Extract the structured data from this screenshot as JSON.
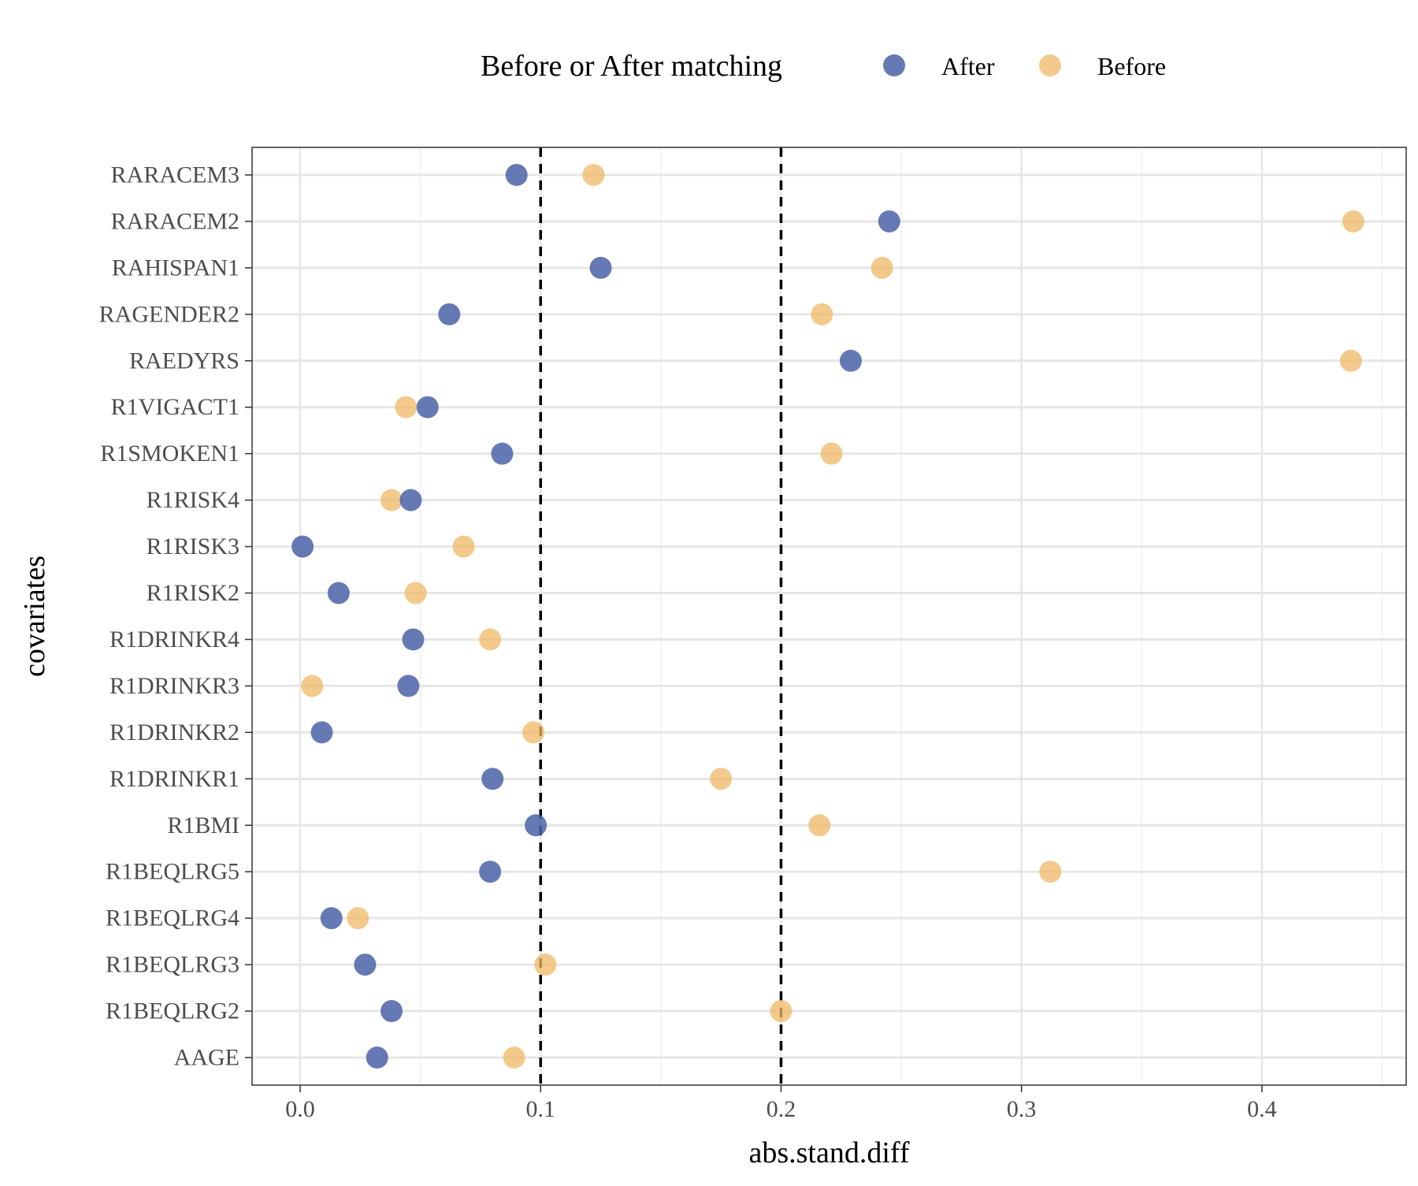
{
  "chart_data": {
    "type": "scatter",
    "xlabel": "abs.stand.diff",
    "ylabel": "covariates",
    "xlim": [
      -0.02,
      0.46
    ],
    "x_ticks": [
      0.0,
      0.1,
      0.2,
      0.3,
      0.4
    ],
    "x_tick_labels": [
      "0.0",
      "0.1",
      "0.2",
      "0.3",
      "0.4"
    ],
    "grid": true,
    "legend": {
      "title": "Before or After matching",
      "position": "top"
    },
    "reference_lines": [
      0.1,
      0.2
    ],
    "categories": [
      "AAGE",
      "R1BEQLRG2",
      "R1BEQLRG3",
      "R1BEQLRG4",
      "R1BEQLRG5",
      "R1BMI",
      "R1DRINKR1",
      "R1DRINKR2",
      "R1DRINKR3",
      "R1DRINKR4",
      "R1RISK2",
      "R1RISK3",
      "R1RISK4",
      "R1SMOKEN1",
      "R1VIGACT1",
      "RAEDYRS",
      "RAGENDER2",
      "RAHISPAN1",
      "RARACEM2",
      "RARACEM3"
    ],
    "series": [
      {
        "name": "After",
        "color": "#4a63a8",
        "values": [
          0.032,
          0.038,
          0.027,
          0.013,
          0.079,
          0.098,
          0.08,
          0.009,
          0.045,
          0.047,
          0.016,
          0.001,
          0.046,
          0.084,
          0.053,
          0.229,
          0.062,
          0.125,
          0.245,
          0.09
        ]
      },
      {
        "name": "Before",
        "color": "#efb866",
        "values": [
          0.089,
          0.2,
          0.102,
          0.024,
          0.312,
          0.216,
          0.175,
          0.097,
          0.005,
          0.079,
          0.048,
          0.068,
          0.038,
          0.221,
          0.044,
          0.437,
          0.217,
          0.242,
          0.438,
          0.122
        ]
      }
    ]
  }
}
